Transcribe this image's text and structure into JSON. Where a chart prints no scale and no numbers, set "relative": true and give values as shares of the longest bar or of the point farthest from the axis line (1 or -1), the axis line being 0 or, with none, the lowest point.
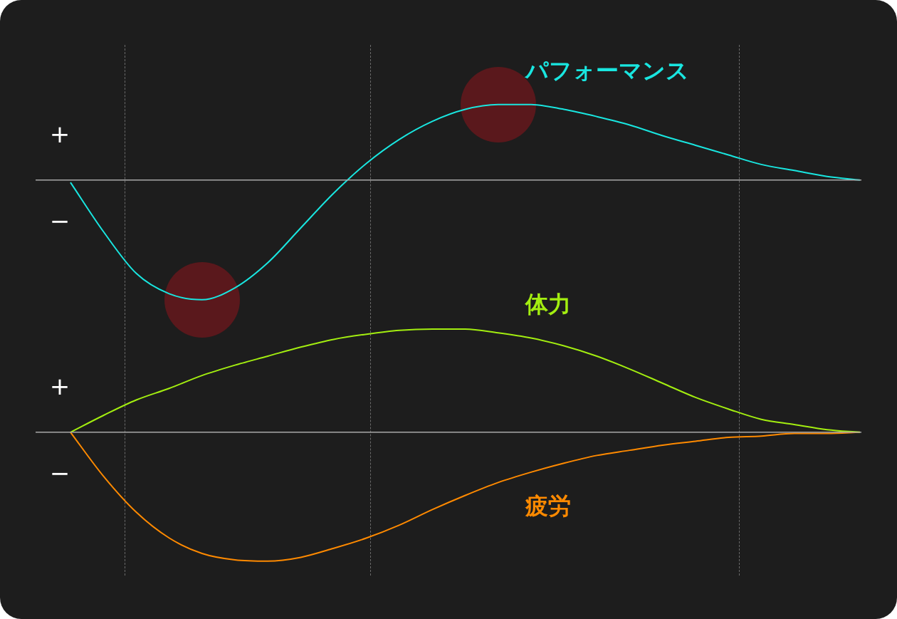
{
  "chart_data": [
    {
      "type": "line",
      "relative": true,
      "categories": [
        null,
        null,
        null,
        null,
        null,
        null,
        null,
        null,
        null,
        null,
        null,
        null,
        null,
        null,
        null,
        null,
        null,
        null,
        null,
        null,
        null,
        null,
        null,
        null,
        null
      ],
      "legend": false,
      "marker": "none",
      "line_style": "solid",
      "annotations": [
        "+",
        "−"
      ],
      "series": [
        {
          "name": "パフォーマンス",
          "color": "#19e6e0",
          "values": [
            -0.02,
            -0.43,
            -0.78,
            -0.95,
            -1,
            -0.9,
            -0.69,
            -0.4,
            -0.11,
            0.14,
            0.34,
            0.49,
            0.59,
            0.63,
            0.63,
            0.59,
            0.53,
            0.46,
            0.37,
            0.29,
            0.21,
            0.13,
            0.08,
            0.03,
            0
          ]
        }
      ]
    },
    {
      "type": "line",
      "relative": true,
      "categories": [
        null,
        null,
        null,
        null,
        null,
        null,
        null,
        null,
        null,
        null,
        null,
        null,
        null,
        null,
        null,
        null,
        null,
        null,
        null,
        null,
        null,
        null,
        null,
        null,
        null
      ],
      "legend": false,
      "marker": "none",
      "line_style": "solid",
      "annotations": [
        "+",
        "−"
      ],
      "series": [
        {
          "name": "体力",
          "color": "#a3ee10",
          "values": [
            0,
            0.13,
            0.25,
            0.34,
            0.44,
            0.52,
            0.59,
            0.66,
            0.72,
            0.76,
            0.79,
            0.8,
            0.8,
            0.77,
            0.73,
            0.67,
            0.59,
            0.49,
            0.38,
            0.27,
            0.18,
            0.1,
            0.06,
            0.02,
            0
          ]
        },
        {
          "name": "疲労",
          "color": "#ff8a00",
          "values": [
            0,
            -0.34,
            -0.62,
            -0.82,
            -0.94,
            -0.99,
            -1,
            -0.97,
            -0.9,
            -0.82,
            -0.72,
            -0.6,
            -0.49,
            -0.39,
            -0.31,
            -0.24,
            -0.18,
            -0.14,
            -0.1,
            -0.07,
            -0.04,
            -0.03,
            -0.01,
            -0.01,
            0
          ]
        }
      ]
    }
  ]
}
